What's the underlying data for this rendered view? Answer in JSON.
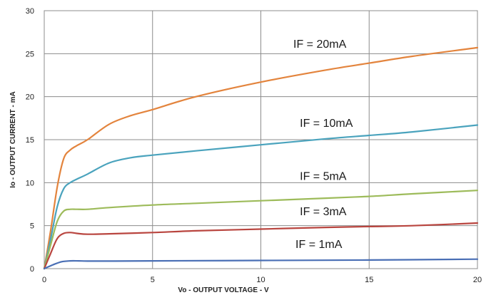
{
  "chart_data": {
    "type": "line",
    "xlabel": "Vo - OUTPUT VOLTAGE - V",
    "ylabel": "Io - OUTPUT CURRENT - mA",
    "xlim": [
      0,
      20
    ],
    "ylim": [
      0,
      30
    ],
    "x_ticks": [
      "0",
      "5",
      "10",
      "15",
      "20"
    ],
    "y_ticks": [
      "0",
      "5",
      "10",
      "15",
      "20",
      "25",
      "30"
    ],
    "grid": true,
    "legend": "none",
    "series": [
      {
        "name": "IF = 20mA",
        "color": "#e3843d",
        "x": [
          0,
          0.3,
          0.6,
          0.9,
          1.2,
          1.5,
          2,
          3,
          4,
          5,
          7,
          10,
          13,
          15,
          17,
          20
        ],
        "y": [
          0,
          4.5,
          9.5,
          12.8,
          13.8,
          14.3,
          15.0,
          16.8,
          17.8,
          18.5,
          20.0,
          21.7,
          23.1,
          23.9,
          24.7,
          25.7
        ]
      },
      {
        "name": "IF = 10mA",
        "color": "#4aa3bd",
        "x": [
          0,
          0.3,
          0.6,
          0.9,
          1.2,
          1.5,
          2,
          3,
          4,
          5,
          7,
          10,
          13,
          15,
          17,
          20
        ],
        "y": [
          0,
          3.5,
          7.2,
          9.3,
          10.0,
          10.4,
          11.0,
          12.3,
          12.9,
          13.2,
          13.7,
          14.4,
          15.1,
          15.5,
          15.9,
          16.7
        ]
      },
      {
        "name": "IF = 5mA",
        "color": "#9dbb5a",
        "x": [
          0,
          0.3,
          0.6,
          0.9,
          1.2,
          1.5,
          2,
          3,
          5,
          7,
          10,
          13,
          15,
          17,
          20
        ],
        "y": [
          0,
          2.8,
          5.5,
          6.7,
          6.9,
          6.9,
          6.9,
          7.1,
          7.4,
          7.6,
          7.9,
          8.2,
          8.4,
          8.7,
          9.1
        ]
      },
      {
        "name": "IF = 3mA",
        "color": "#b9453f",
        "x": [
          0,
          0.3,
          0.6,
          0.9,
          1.2,
          1.5,
          2,
          3,
          5,
          7,
          10,
          13,
          15,
          17,
          20
        ],
        "y": [
          0,
          1.8,
          3.5,
          4.1,
          4.2,
          4.1,
          4.0,
          4.05,
          4.2,
          4.4,
          4.6,
          4.8,
          4.9,
          5.0,
          5.3
        ]
      },
      {
        "name": "IF = 1mA",
        "color": "#4a6fb5",
        "x": [
          0,
          0.4,
          0.8,
          1.2,
          1.6,
          2,
          3,
          5,
          10,
          15,
          20
        ],
        "y": [
          0,
          0.45,
          0.8,
          0.9,
          0.9,
          0.88,
          0.88,
          0.9,
          0.95,
          1.0,
          1.1
        ]
      }
    ],
    "annotations": [
      {
        "text": "IF = 20mA",
        "x": 11.5,
        "y": 25.7
      },
      {
        "text": "IF = 10mA",
        "x": 11.8,
        "y": 16.5
      },
      {
        "text": "IF = 5mA",
        "x": 11.8,
        "y": 10.3
      },
      {
        "text": "IF = 3mA",
        "x": 11.8,
        "y": 6.2
      },
      {
        "text": "IF = 1mA",
        "x": 11.6,
        "y": 2.4
      }
    ]
  }
}
